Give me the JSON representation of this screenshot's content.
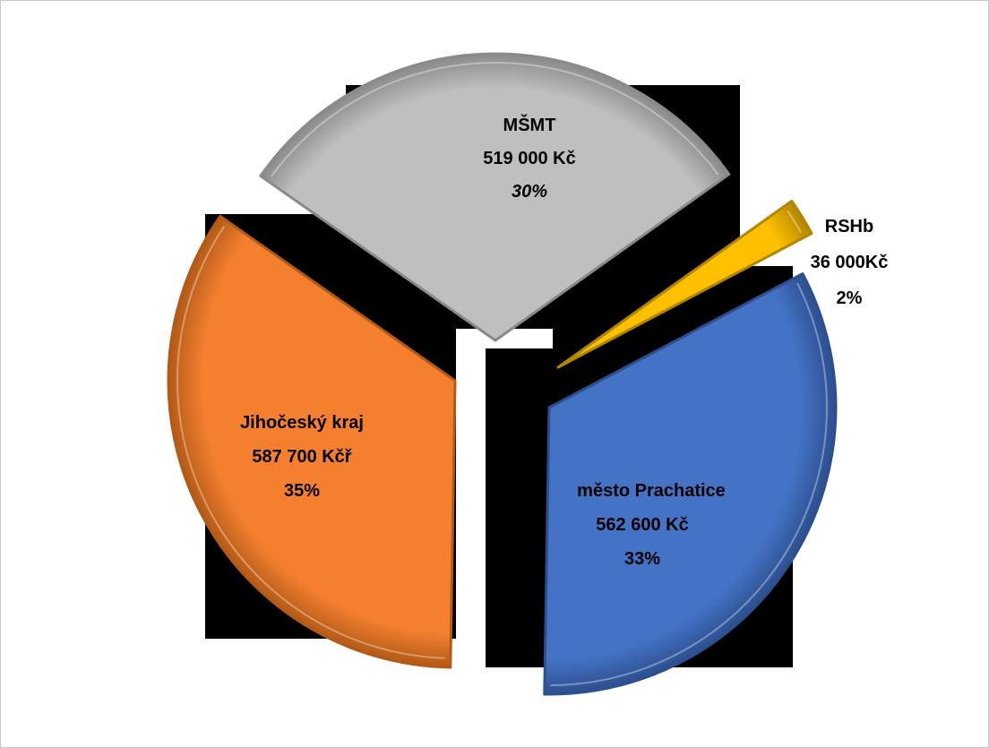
{
  "chart_data": {
    "type": "pie",
    "exploded": true,
    "slices": [
      {
        "key": "msmt",
        "name": "MŠMT",
        "value": 519000,
        "value_label": "519 000 Kč",
        "percent": 30,
        "percent_label": "30%",
        "color": "#BFBFBF",
        "edge_color": "#8a8a8a"
      },
      {
        "key": "rshb",
        "name": "RSHb",
        "value": 36000,
        "value_label": "36 000Kč",
        "percent": 2,
        "percent_label": "2%",
        "color": "#FFC000",
        "edge_color": "#b38600"
      },
      {
        "key": "prachatice",
        "name": "město Prachatice",
        "value": 562600,
        "value_label": "562 600 Kč",
        "percent": 33,
        "percent_label": "33%",
        "color": "#4472C4",
        "edge_color": "#2c4f8f"
      },
      {
        "key": "jihocesky",
        "name": "Jihočeský kraj",
        "value": 587700,
        "value_label": "587 700 Kčř",
        "percent": 35,
        "percent_label": "35%",
        "color": "#F4802F",
        "edge_color": "#b45a17"
      }
    ]
  }
}
